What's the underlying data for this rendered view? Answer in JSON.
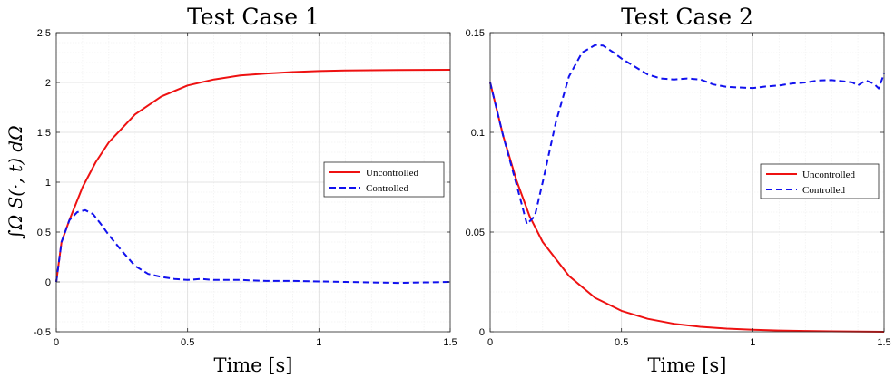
{
  "chart_data": [
    {
      "type": "line",
      "title": "Test Case 1",
      "xlabel": "Time [s]",
      "ylabel": "∫Ω S(·, t) dΩ",
      "xlim": [
        0,
        1.5
      ],
      "ylim": [
        -0.5,
        2.5
      ],
      "xticks": [
        0,
        0.5,
        1,
        1.5
      ],
      "xtick_labels": [
        "0",
        "0.5",
        "1",
        "1.5"
      ],
      "yticks": [
        -0.5,
        0,
        0.5,
        1,
        1.5,
        2,
        2.5
      ],
      "ytick_labels": [
        "-0.5",
        "0",
        "0.5",
        "1",
        "1.5",
        "2",
        "2.5"
      ],
      "grid": true,
      "legend": "center-right",
      "series": [
        {
          "name": "Uncontrolled",
          "color": "#ee1111",
          "style": "solid",
          "x": [
            0,
            0.02,
            0.05,
            0.1,
            0.15,
            0.2,
            0.3,
            0.4,
            0.5,
            0.6,
            0.7,
            0.8,
            0.9,
            1.0,
            1.1,
            1.2,
            1.3,
            1.4,
            1.5
          ],
          "y": [
            0.0,
            0.4,
            0.62,
            0.95,
            1.2,
            1.4,
            1.68,
            1.86,
            1.97,
            2.03,
            2.07,
            2.09,
            2.105,
            2.115,
            2.12,
            2.123,
            2.125,
            2.126,
            2.127
          ]
        },
        {
          "name": "Controlled",
          "color": "#1111ee",
          "style": "dashed",
          "x": [
            0,
            0.02,
            0.05,
            0.08,
            0.11,
            0.14,
            0.17,
            0.2,
            0.25,
            0.3,
            0.35,
            0.4,
            0.45,
            0.5,
            0.55,
            0.6,
            0.7,
            0.8,
            0.9,
            1.0,
            1.1,
            1.2,
            1.3,
            1.4,
            1.5
          ],
          "y": [
            0.0,
            0.4,
            0.62,
            0.7,
            0.72,
            0.68,
            0.58,
            0.47,
            0.31,
            0.16,
            0.08,
            0.05,
            0.03,
            0.02,
            0.03,
            0.02,
            0.02,
            0.01,
            0.01,
            0.005,
            0.0,
            -0.005,
            -0.01,
            -0.005,
            0.0
          ]
        }
      ]
    },
    {
      "type": "line",
      "title": "Test Case 2",
      "xlabel": "Time [s]",
      "ylabel": "",
      "xlim": [
        0,
        1.5
      ],
      "ylim": [
        0,
        0.15
      ],
      "xticks": [
        0,
        0.5,
        1,
        1.5
      ],
      "xtick_labels": [
        "0",
        "0.5",
        "1",
        "1.5"
      ],
      "yticks": [
        0,
        0.05,
        0.1,
        0.15
      ],
      "ytick_labels": [
        "0",
        "0.05",
        "0.1",
        "0.15"
      ],
      "grid": true,
      "legend": "center-right",
      "series": [
        {
          "name": "Uncontrolled",
          "color": "#ee1111",
          "style": "solid",
          "x": [
            0,
            0.05,
            0.1,
            0.15,
            0.2,
            0.3,
            0.4,
            0.5,
            0.6,
            0.7,
            0.8,
            0.9,
            1.0,
            1.1,
            1.2,
            1.3,
            1.4,
            1.5
          ],
          "y": [
            0.125,
            0.098,
            0.076,
            0.058,
            0.045,
            0.028,
            0.017,
            0.0105,
            0.0065,
            0.004,
            0.0025,
            0.0016,
            0.001,
            0.0006,
            0.0004,
            0.0002,
            0.0001,
            0.0
          ]
        },
        {
          "name": "Controlled",
          "color": "#1111ee",
          "style": "dashed",
          "x": [
            0,
            0.05,
            0.1,
            0.14,
            0.17,
            0.2,
            0.25,
            0.3,
            0.35,
            0.4,
            0.43,
            0.47,
            0.5,
            0.55,
            0.6,
            0.65,
            0.7,
            0.75,
            0.8,
            0.85,
            0.9,
            0.95,
            1.0,
            1.05,
            1.1,
            1.15,
            1.2,
            1.25,
            1.3,
            1.35,
            1.38,
            1.4,
            1.43,
            1.46,
            1.48,
            1.5
          ],
          "y": [
            0.125,
            0.098,
            0.074,
            0.054,
            0.058,
            0.075,
            0.105,
            0.128,
            0.14,
            0.1438,
            0.1435,
            0.14,
            0.137,
            0.133,
            0.129,
            0.127,
            0.1265,
            0.127,
            0.1265,
            0.124,
            0.1228,
            0.1225,
            0.1222,
            0.123,
            0.1235,
            0.1245,
            0.125,
            0.126,
            0.1262,
            0.1255,
            0.125,
            0.1235,
            0.126,
            0.1245,
            0.122,
            0.1295
          ]
        }
      ]
    }
  ]
}
